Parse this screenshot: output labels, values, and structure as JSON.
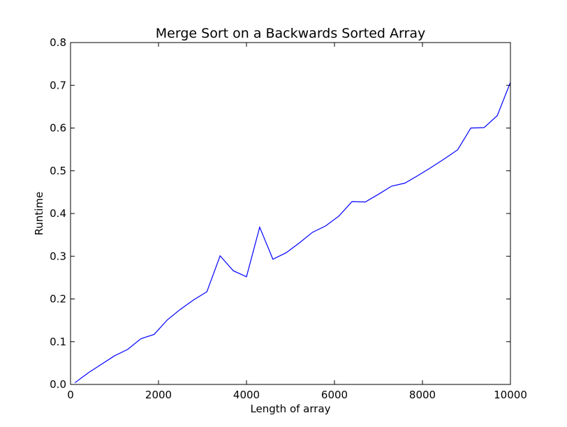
{
  "chart_data": {
    "type": "line",
    "title": "Merge Sort on a Backwards Sorted Array",
    "xlabel": "Length of array",
    "ylabel": "Runtime",
    "xlim": [
      0,
      10000
    ],
    "ylim": [
      0.0,
      0.8
    ],
    "xticks": [
      0,
      2000,
      4000,
      6000,
      8000,
      10000
    ],
    "xtick_labels": [
      "0",
      "2000",
      "4000",
      "6000",
      "8000",
      "10000"
    ],
    "yticks": [
      0.0,
      0.1,
      0.2,
      0.3,
      0.4,
      0.5,
      0.6,
      0.7,
      0.8
    ],
    "ytick_labels": [
      "0.0",
      "0.1",
      "0.2",
      "0.3",
      "0.4",
      "0.5",
      "0.6",
      "0.7",
      "0.8"
    ],
    "grid": false,
    "series": [
      {
        "color": "#0000ff",
        "x": [
          100,
          400,
          700,
          1000,
          1300,
          1600,
          1900,
          2200,
          2500,
          2800,
          3100,
          3400,
          3700,
          4000,
          4300,
          4600,
          4900,
          5200,
          5500,
          5800,
          6100,
          6400,
          6700,
          7000,
          7300,
          7600,
          7900,
          8200,
          8500,
          8800,
          9100,
          9400,
          9700,
          10000
        ],
        "y": [
          0.004,
          0.027,
          0.047,
          0.067,
          0.082,
          0.107,
          0.117,
          0.151,
          0.176,
          0.198,
          0.217,
          0.301,
          0.266,
          0.252,
          0.368,
          0.293,
          0.308,
          0.331,
          0.356,
          0.371,
          0.394,
          0.428,
          0.427,
          0.445,
          0.464,
          0.471,
          0.489,
          0.508,
          0.528,
          0.549,
          0.6,
          0.601,
          0.629,
          0.707
        ]
      }
    ]
  }
}
